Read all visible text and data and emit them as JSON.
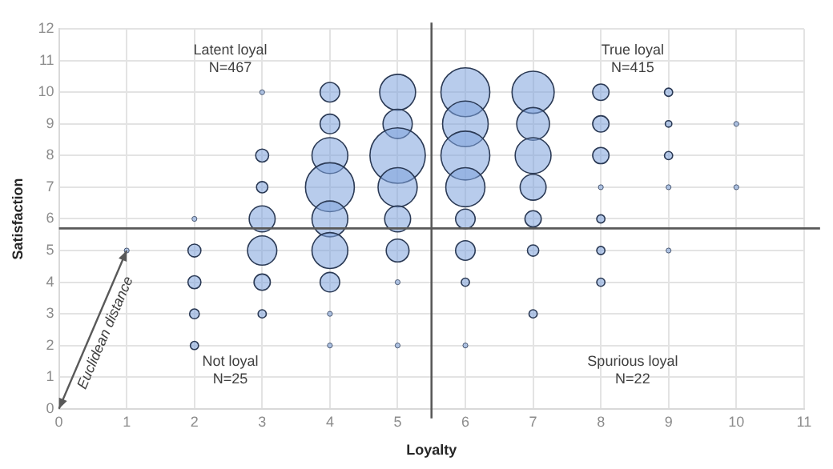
{
  "chart_data": {
    "type": "bubble",
    "xlabel": "Loyalty",
    "ylabel": "Satisfaction",
    "xlim": [
      0,
      11
    ],
    "xticks": [
      0,
      1,
      2,
      3,
      4,
      5,
      6,
      7,
      8,
      9,
      10,
      11
    ],
    "ylim": [
      0,
      12
    ],
    "yticks": [
      0,
      1,
      2,
      3,
      4,
      5,
      6,
      7,
      8,
      9,
      10,
      11,
      12
    ],
    "grid": true,
    "legend": false,
    "series": [
      {
        "color": "#7ea3dc",
        "x": [
          1,
          2,
          2,
          2,
          2,
          2,
          3,
          3,
          3,
          3,
          3,
          3,
          3,
          4,
          4,
          4,
          4,
          4,
          4,
          4,
          4,
          4,
          5,
          5,
          5,
          5,
          5,
          5,
          5,
          5,
          6,
          6,
          6,
          6,
          6,
          6,
          6,
          6,
          7,
          7,
          7,
          7,
          7,
          7,
          7,
          8,
          8,
          8,
          8,
          8,
          8,
          8,
          9,
          9,
          9,
          9,
          9,
          10,
          10
        ],
        "values": [
          5,
          6,
          5,
          4,
          3,
          2,
          10,
          8,
          7,
          6,
          5,
          4,
          3,
          10,
          9,
          8,
          7,
          6,
          5,
          4,
          3,
          2,
          10,
          9,
          8,
          7,
          6,
          5,
          4,
          2,
          10,
          9,
          8,
          7,
          6,
          5,
          4,
          2,
          10,
          9,
          8,
          7,
          6,
          5,
          3,
          10,
          9,
          8,
          7,
          6,
          5,
          4,
          10,
          9,
          8,
          7,
          5,
          9,
          7
        ],
        "sizes": [
          0.008,
          0.008,
          0.055,
          0.055,
          0.031,
          0.022,
          0.008,
          0.055,
          0.042,
          0.22,
          0.28,
          0.087,
          0.022,
          0.125,
          0.125,
          0.42,
          0.78,
          0.42,
          0.42,
          0.125,
          0.008,
          0.008,
          0.42,
          0.28,
          1,
          0.5,
          0.22,
          0.17,
          0.008,
          0.008,
          0.78,
          0.68,
          0.78,
          0.5,
          0.125,
          0.125,
          0.022,
          0.008,
          0.58,
          0.35,
          0.42,
          0.22,
          0.087,
          0.042,
          0.022,
          0.087,
          0.087,
          0.087,
          0.008,
          0.022,
          0.022,
          0.022,
          0.022,
          0.014,
          0.022,
          0.008,
          0.008,
          0.008,
          0.008
        ]
      }
    ],
    "ref_lines": [
      {
        "axis": "x",
        "value": 5.5,
        "color": "#595959"
      },
      {
        "axis": "y",
        "value": 5.7,
        "color": "#595959"
      }
    ],
    "annotations": [
      "Latent loyal\nN=467",
      "True loyal\nN=415",
      "Not loyal\nN=25",
      "Spurious loyal\nN=22",
      {
        "text": "Euclidean distance",
        "x": 1,
        "y": 5
      }
    ]
  }
}
